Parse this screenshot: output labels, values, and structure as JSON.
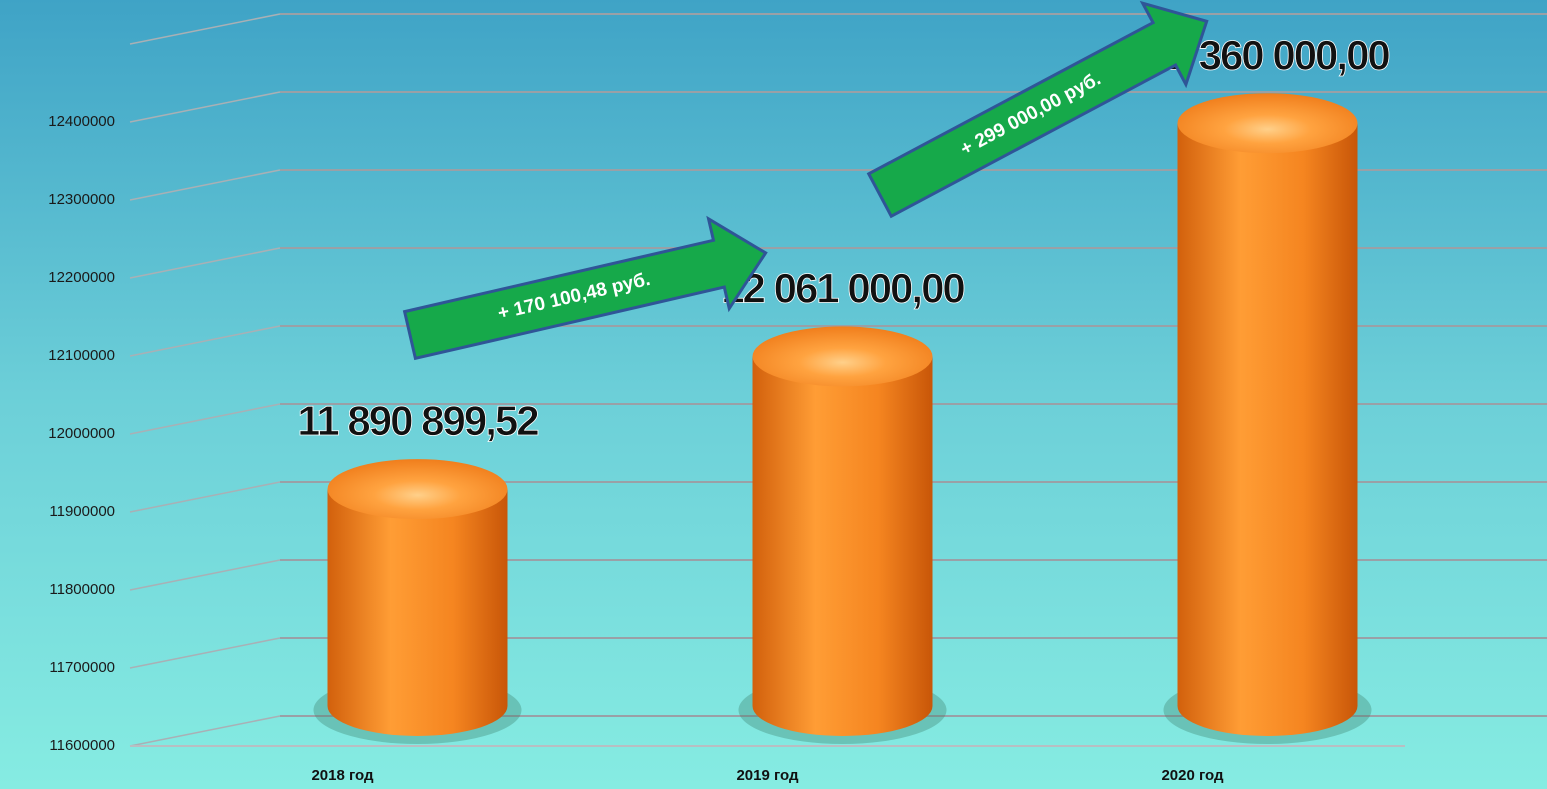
{
  "chart_data": {
    "type": "bar3d",
    "categories": [
      "2018 год",
      "2019 год",
      "2020 год"
    ],
    "values": [
      11890899.52,
      12061000,
      12360000
    ],
    "value_labels": [
      "11 890 899,52",
      "12 061 000,00",
      "12 360 000,00"
    ],
    "color": "#f08a24",
    "ylim": [
      11600000,
      12500000
    ],
    "yticks": [
      11600000,
      11700000,
      11800000,
      11900000,
      12000000,
      12100000,
      12200000,
      12300000,
      12400000
    ],
    "grid": true,
    "annotations": [
      "+ 170 100,48 руб.",
      "+ 299 000,00 руб."
    ]
  }
}
